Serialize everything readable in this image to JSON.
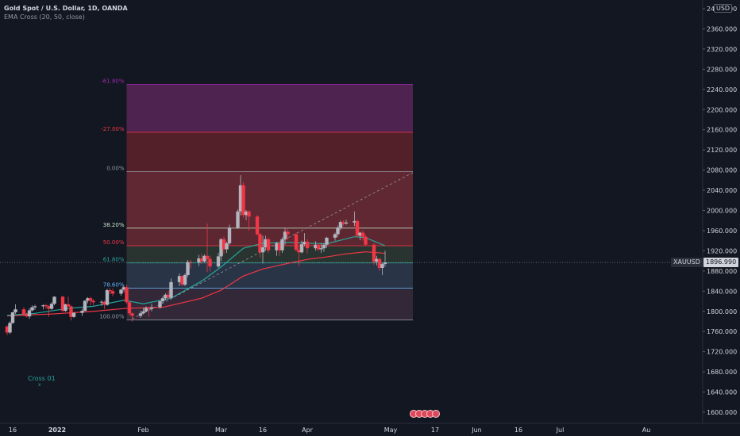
{
  "header": {
    "title": "Gold Spot / U.S. Dollar, 1D, OANDA",
    "indicator": "EMA Cross (20, 50, close)"
  },
  "currency": "USD",
  "price_tag": {
    "symbol": "XAUUSD",
    "value": "1896.990"
  },
  "indicator_label": "Cross 01",
  "indicator_mark": "x",
  "colors": {
    "background": "#131722",
    "up": "#b2b5be",
    "down": "#f23645",
    "ema20": "#26a69a",
    "ema50": "#f23645"
  },
  "chart_data": {
    "type": "candlestick",
    "y_axis": {
      "range": [
        1580,
        2440
      ],
      "ticks": [
        "1600.000",
        "1640.000",
        "1680.000",
        "1720.000",
        "1760.000",
        "1800.000",
        "1840.000",
        "1880.000",
        "1920.000",
        "1960.000",
        "2000.000",
        "2040.000",
        "2080.000",
        "2120.000",
        "2160.000",
        "2200.000",
        "2240.000",
        "2280.000",
        "2320.000",
        "2360.000",
        "2400.000"
      ]
    },
    "x_axis": {
      "ticks": [
        {
          "label": "16",
          "date": "2021-12-16"
        },
        {
          "label": "2022",
          "date": "2022-01-01"
        },
        {
          "label": "Feb",
          "date": "2022-02-01"
        },
        {
          "label": "Mar",
          "date": "2022-03-01"
        },
        {
          "label": "16",
          "date": "2022-03-16"
        },
        {
          "label": "Apr",
          "date": "2022-04-01"
        },
        {
          "label": "May",
          "date": "2022-05-01"
        },
        {
          "label": "17",
          "date": "2022-05-17"
        },
        {
          "label": "Jun",
          "date": "2022-06-01"
        },
        {
          "label": "16",
          "date": "2022-06-16"
        },
        {
          "label": "Jul",
          "date": "2022-07-01"
        },
        {
          "label": "Au",
          "date": "2022-08-01"
        }
      ]
    },
    "fib_levels": [
      {
        "label": "-61.80%",
        "price": 2250,
        "color": "#9c27b0"
      },
      {
        "label": "-27.00%",
        "price": 2155,
        "color": "#f23645"
      },
      {
        "label": "0.00%",
        "price": 2077,
        "color": "#9598a1"
      },
      {
        "label": "38.20%",
        "price": 1965,
        "color": "#c8e6c9"
      },
      {
        "label": "50.00%",
        "price": 1930,
        "color": "#f23645"
      },
      {
        "label": "61.80%",
        "price": 1896,
        "color": "#26a69a"
      },
      {
        "label": "78.60%",
        "price": 1846,
        "color": "#64b5f6"
      },
      {
        "label": "100.00%",
        "price": 1783,
        "color": "#9598a1"
      }
    ],
    "fib_zone_colors": [
      "#5b2657",
      "#5f222c",
      "#6e2c36",
      "#6a2a33",
      "#2e3a32",
      "#2f3a4d",
      "#3a2c3c",
      "#4a2a30"
    ],
    "candles": [
      {
        "d": "2021-12-14",
        "o": 1770,
        "h": 1772,
        "l": 1753,
        "c": 1758
      },
      {
        "d": "2021-12-15",
        "o": 1758,
        "h": 1780,
        "l": 1755,
        "c": 1777
      },
      {
        "d": "2021-12-16",
        "o": 1777,
        "h": 1799,
        "l": 1775,
        "c": 1798
      },
      {
        "d": "2021-12-17",
        "o": 1798,
        "h": 1814,
        "l": 1795,
        "c": 1804
      },
      {
        "d": "2021-12-20",
        "o": 1804,
        "h": 1808,
        "l": 1790,
        "c": 1794
      },
      {
        "d": "2021-12-21",
        "o": 1794,
        "h": 1797,
        "l": 1788,
        "c": 1790
      },
      {
        "d": "2021-12-22",
        "o": 1790,
        "h": 1806,
        "l": 1785,
        "c": 1802
      },
      {
        "d": "2021-12-23",
        "o": 1802,
        "h": 1812,
        "l": 1800,
        "c": 1808
      },
      {
        "d": "2021-12-24",
        "o": 1808,
        "h": 1813,
        "l": 1803,
        "c": 1810
      },
      {
        "d": "2021-12-27",
        "o": 1810,
        "h": 1814,
        "l": 1804,
        "c": 1812
      },
      {
        "d": "2021-12-28",
        "o": 1812,
        "h": 1815,
        "l": 1805,
        "c": 1810
      },
      {
        "d": "2021-12-29",
        "o": 1810,
        "h": 1812,
        "l": 1789,
        "c": 1805
      },
      {
        "d": "2021-12-30",
        "o": 1805,
        "h": 1818,
        "l": 1803,
        "c": 1815
      },
      {
        "d": "2021-12-31",
        "o": 1815,
        "h": 1830,
        "l": 1812,
        "c": 1829
      },
      {
        "d": "2022-01-03",
        "o": 1829,
        "h": 1831,
        "l": 1799,
        "c": 1801
      },
      {
        "d": "2022-01-04",
        "o": 1801,
        "h": 1815,
        "l": 1799,
        "c": 1814
      },
      {
        "d": "2022-01-05",
        "o": 1814,
        "h": 1829,
        "l": 1809,
        "c": 1810
      },
      {
        "d": "2022-01-06",
        "o": 1810,
        "h": 1812,
        "l": 1782,
        "c": 1789
      },
      {
        "d": "2022-01-07",
        "o": 1789,
        "h": 1798,
        "l": 1787,
        "c": 1797
      },
      {
        "d": "2022-01-10",
        "o": 1797,
        "h": 1805,
        "l": 1791,
        "c": 1801
      },
      {
        "d": "2022-01-11",
        "o": 1801,
        "h": 1822,
        "l": 1800,
        "c": 1821
      },
      {
        "d": "2022-01-12",
        "o": 1821,
        "h": 1828,
        "l": 1816,
        "c": 1826
      },
      {
        "d": "2022-01-13",
        "o": 1826,
        "h": 1829,
        "l": 1812,
        "c": 1821
      },
      {
        "d": "2022-01-14",
        "o": 1821,
        "h": 1824,
        "l": 1812,
        "c": 1818
      },
      {
        "d": "2022-01-17",
        "o": 1818,
        "h": 1822,
        "l": 1811,
        "c": 1819
      },
      {
        "d": "2022-01-18",
        "o": 1819,
        "h": 1821,
        "l": 1805,
        "c": 1813
      },
      {
        "d": "2022-01-19",
        "o": 1813,
        "h": 1845,
        "l": 1811,
        "c": 1842
      },
      {
        "d": "2022-01-20",
        "o": 1842,
        "h": 1846,
        "l": 1834,
        "c": 1840
      },
      {
        "d": "2022-01-21",
        "o": 1840,
        "h": 1845,
        "l": 1830,
        "c": 1835
      },
      {
        "d": "2022-01-24",
        "o": 1835,
        "h": 1845,
        "l": 1831,
        "c": 1843
      },
      {
        "d": "2022-01-25",
        "o": 1843,
        "h": 1851,
        "l": 1838,
        "c": 1848
      },
      {
        "d": "2022-01-26",
        "o": 1848,
        "h": 1853,
        "l": 1815,
        "c": 1818
      },
      {
        "d": "2022-01-27",
        "o": 1818,
        "h": 1820,
        "l": 1792,
        "c": 1796
      },
      {
        "d": "2022-01-28",
        "o": 1796,
        "h": 1797,
        "l": 1780,
        "c": 1791
      },
      {
        "d": "2022-01-31",
        "o": 1791,
        "h": 1801,
        "l": 1787,
        "c": 1796
      },
      {
        "d": "2022-02-01",
        "o": 1796,
        "h": 1807,
        "l": 1794,
        "c": 1800
      },
      {
        "d": "2022-02-02",
        "o": 1800,
        "h": 1810,
        "l": 1798,
        "c": 1807
      },
      {
        "d": "2022-02-03",
        "o": 1807,
        "h": 1809,
        "l": 1789,
        "c": 1805
      },
      {
        "d": "2022-02-04",
        "o": 1805,
        "h": 1815,
        "l": 1800,
        "c": 1808
      },
      {
        "d": "2022-02-07",
        "o": 1808,
        "h": 1822,
        "l": 1805,
        "c": 1820
      },
      {
        "d": "2022-02-08",
        "o": 1820,
        "h": 1830,
        "l": 1816,
        "c": 1826
      },
      {
        "d": "2022-02-09",
        "o": 1826,
        "h": 1836,
        "l": 1822,
        "c": 1833
      },
      {
        "d": "2022-02-10",
        "o": 1833,
        "h": 1841,
        "l": 1824,
        "c": 1827
      },
      {
        "d": "2022-02-11",
        "o": 1827,
        "h": 1865,
        "l": 1824,
        "c": 1858
      },
      {
        "d": "2022-02-14",
        "o": 1858,
        "h": 1875,
        "l": 1850,
        "c": 1870
      },
      {
        "d": "2022-02-15",
        "o": 1870,
        "h": 1871,
        "l": 1850,
        "c": 1853
      },
      {
        "d": "2022-02-16",
        "o": 1853,
        "h": 1875,
        "l": 1850,
        "c": 1872
      },
      {
        "d": "2022-02-17",
        "o": 1872,
        "h": 1902,
        "l": 1868,
        "c": 1898
      },
      {
        "d": "2022-02-18",
        "o": 1898,
        "h": 1902,
        "l": 1885,
        "c": 1897
      },
      {
        "d": "2022-02-21",
        "o": 1897,
        "h": 1912,
        "l": 1890,
        "c": 1905
      },
      {
        "d": "2022-02-22",
        "o": 1905,
        "h": 1914,
        "l": 1894,
        "c": 1899
      },
      {
        "d": "2022-02-23",
        "o": 1899,
        "h": 1913,
        "l": 1896,
        "c": 1910
      },
      {
        "d": "2022-02-24",
        "o": 1910,
        "h": 1974,
        "l": 1878,
        "c": 1904
      },
      {
        "d": "2022-02-25",
        "o": 1904,
        "h": 1910,
        "l": 1879,
        "c": 1889
      },
      {
        "d": "2022-02-28",
        "o": 1889,
        "h": 1916,
        "l": 1886,
        "c": 1909
      },
      {
        "d": "2022-03-01",
        "o": 1909,
        "h": 1945,
        "l": 1900,
        "c": 1943
      },
      {
        "d": "2022-03-02",
        "o": 1943,
        "h": 1948,
        "l": 1914,
        "c": 1923
      },
      {
        "d": "2022-03-03",
        "o": 1923,
        "h": 1938,
        "l": 1916,
        "c": 1935
      },
      {
        "d": "2022-03-04",
        "o": 1935,
        "h": 1972,
        "l": 1932,
        "c": 1966
      },
      {
        "d": "2022-03-07",
        "o": 1966,
        "h": 2002,
        "l": 1963,
        "c": 1998
      },
      {
        "d": "2022-03-08",
        "o": 1998,
        "h": 2070,
        "l": 1990,
        "c": 2050
      },
      {
        "d": "2022-03-09",
        "o": 2050,
        "h": 2056,
        "l": 1986,
        "c": 1991
      },
      {
        "d": "2022-03-10",
        "o": 1991,
        "h": 2001,
        "l": 1981,
        "c": 1998
      },
      {
        "d": "2022-03-11",
        "o": 1998,
        "h": 2000,
        "l": 1960,
        "c": 1988
      },
      {
        "d": "2022-03-14",
        "o": 1988,
        "h": 1991,
        "l": 1950,
        "c": 1953
      },
      {
        "d": "2022-03-15",
        "o": 1953,
        "h": 1955,
        "l": 1906,
        "c": 1917
      },
      {
        "d": "2022-03-16",
        "o": 1917,
        "h": 1950,
        "l": 1895,
        "c": 1927
      },
      {
        "d": "2022-03-17",
        "o": 1927,
        "h": 1950,
        "l": 1920,
        "c": 1943
      },
      {
        "d": "2022-03-18",
        "o": 1943,
        "h": 1946,
        "l": 1916,
        "c": 1921
      },
      {
        "d": "2022-03-21",
        "o": 1921,
        "h": 1938,
        "l": 1910,
        "c": 1935
      },
      {
        "d": "2022-03-22",
        "o": 1935,
        "h": 1938,
        "l": 1910,
        "c": 1921
      },
      {
        "d": "2022-03-23",
        "o": 1921,
        "h": 1947,
        "l": 1916,
        "c": 1943
      },
      {
        "d": "2022-03-24",
        "o": 1943,
        "h": 1966,
        "l": 1932,
        "c": 1958
      },
      {
        "d": "2022-03-25",
        "o": 1958,
        "h": 1965,
        "l": 1941,
        "c": 1953
      },
      {
        "d": "2022-03-28",
        "o": 1953,
        "h": 1956,
        "l": 1918,
        "c": 1922
      },
      {
        "d": "2022-03-29",
        "o": 1922,
        "h": 1929,
        "l": 1890,
        "c": 1917
      },
      {
        "d": "2022-03-30",
        "o": 1917,
        "h": 1940,
        "l": 1915,
        "c": 1933
      },
      {
        "d": "2022-03-31",
        "o": 1933,
        "h": 1955,
        "l": 1929,
        "c": 1938
      },
      {
        "d": "2022-04-01",
        "o": 1938,
        "h": 1943,
        "l": 1915,
        "c": 1925
      },
      {
        "d": "2022-04-04",
        "o": 1925,
        "h": 1939,
        "l": 1920,
        "c": 1932
      },
      {
        "d": "2022-04-05",
        "o": 1932,
        "h": 1935,
        "l": 1919,
        "c": 1923
      },
      {
        "d": "2022-04-06",
        "o": 1923,
        "h": 1935,
        "l": 1916,
        "c": 1925
      },
      {
        "d": "2022-04-07",
        "o": 1925,
        "h": 1935,
        "l": 1918,
        "c": 1932
      },
      {
        "d": "2022-04-08",
        "o": 1932,
        "h": 1948,
        "l": 1926,
        "c": 1946
      },
      {
        "d": "2022-04-11",
        "o": 1946,
        "h": 1956,
        "l": 1940,
        "c": 1953
      },
      {
        "d": "2022-04-12",
        "o": 1953,
        "h": 1970,
        "l": 1948,
        "c": 1966
      },
      {
        "d": "2022-04-13",
        "o": 1966,
        "h": 1980,
        "l": 1961,
        "c": 1977
      },
      {
        "d": "2022-04-14",
        "o": 1977,
        "h": 1980,
        "l": 1970,
        "c": 1974
      },
      {
        "d": "2022-04-15",
        "o": 1974,
        "h": 1982,
        "l": 1972,
        "c": 1976
      },
      {
        "d": "2022-04-18",
        "o": 1976,
        "h": 1998,
        "l": 1969,
        "c": 1979
      },
      {
        "d": "2022-04-19",
        "o": 1979,
        "h": 1982,
        "l": 1947,
        "c": 1950
      },
      {
        "d": "2022-04-20",
        "o": 1950,
        "h": 1958,
        "l": 1941,
        "c": 1956
      },
      {
        "d": "2022-04-21",
        "o": 1956,
        "h": 1961,
        "l": 1940,
        "c": 1948
      },
      {
        "d": "2022-04-22",
        "o": 1948,
        "h": 1952,
        "l": 1929,
        "c": 1932
      },
      {
        "d": "2022-04-25",
        "o": 1932,
        "h": 1936,
        "l": 1892,
        "c": 1898
      },
      {
        "d": "2022-04-26",
        "o": 1898,
        "h": 1910,
        "l": 1891,
        "c": 1904
      },
      {
        "d": "2022-04-27",
        "o": 1904,
        "h": 1906,
        "l": 1880,
        "c": 1886
      },
      {
        "d": "2022-04-28",
        "o": 1886,
        "h": 1896,
        "l": 1872,
        "c": 1894
      },
      {
        "d": "2022-04-29",
        "o": 1894,
        "h": 1920,
        "l": 1889,
        "c": 1897
      }
    ],
    "ema20_points": [
      {
        "d": "2021-12-14",
        "v": 1792
      },
      {
        "d": "2021-12-24",
        "v": 1796
      },
      {
        "d": "2022-01-05",
        "v": 1806
      },
      {
        "d": "2022-01-14",
        "v": 1810
      },
      {
        "d": "2022-01-25",
        "v": 1822
      },
      {
        "d": "2022-02-01",
        "v": 1815
      },
      {
        "d": "2022-02-11",
        "v": 1826
      },
      {
        "d": "2022-02-22",
        "v": 1860
      },
      {
        "d": "2022-03-01",
        "v": 1888
      },
      {
        "d": "2022-03-09",
        "v": 1925
      },
      {
        "d": "2022-03-16",
        "v": 1935
      },
      {
        "d": "2022-03-25",
        "v": 1937
      },
      {
        "d": "2022-04-01",
        "v": 1935
      },
      {
        "d": "2022-04-08",
        "v": 1934
      },
      {
        "d": "2022-04-18",
        "v": 1948
      },
      {
        "d": "2022-04-22",
        "v": 1946
      },
      {
        "d": "2022-04-29",
        "v": 1930
      }
    ],
    "ema50_points": [
      {
        "d": "2021-12-14",
        "v": 1791
      },
      {
        "d": "2021-12-31",
        "v": 1795
      },
      {
        "d": "2022-01-14",
        "v": 1800
      },
      {
        "d": "2022-01-26",
        "v": 1806
      },
      {
        "d": "2022-02-08",
        "v": 1808
      },
      {
        "d": "2022-02-22",
        "v": 1826
      },
      {
        "d": "2022-03-01",
        "v": 1842
      },
      {
        "d": "2022-03-09",
        "v": 1870
      },
      {
        "d": "2022-03-16",
        "v": 1884
      },
      {
        "d": "2022-03-25",
        "v": 1895
      },
      {
        "d": "2022-04-01",
        "v": 1903
      },
      {
        "d": "2022-04-08",
        "v": 1908
      },
      {
        "d": "2022-04-15",
        "v": 1914
      },
      {
        "d": "2022-04-22",
        "v": 1918
      },
      {
        "d": "2022-04-29",
        "v": 1915
      }
    ],
    "fib_range": {
      "start": "2022-01-26",
      "end": "2022-05-09"
    },
    "trend_line": {
      "start_date": "2022-01-28",
      "start_price": 1785,
      "end_date": "2022-05-09",
      "end_price": 2075
    },
    "last_price": 1896.99,
    "grid": false
  }
}
